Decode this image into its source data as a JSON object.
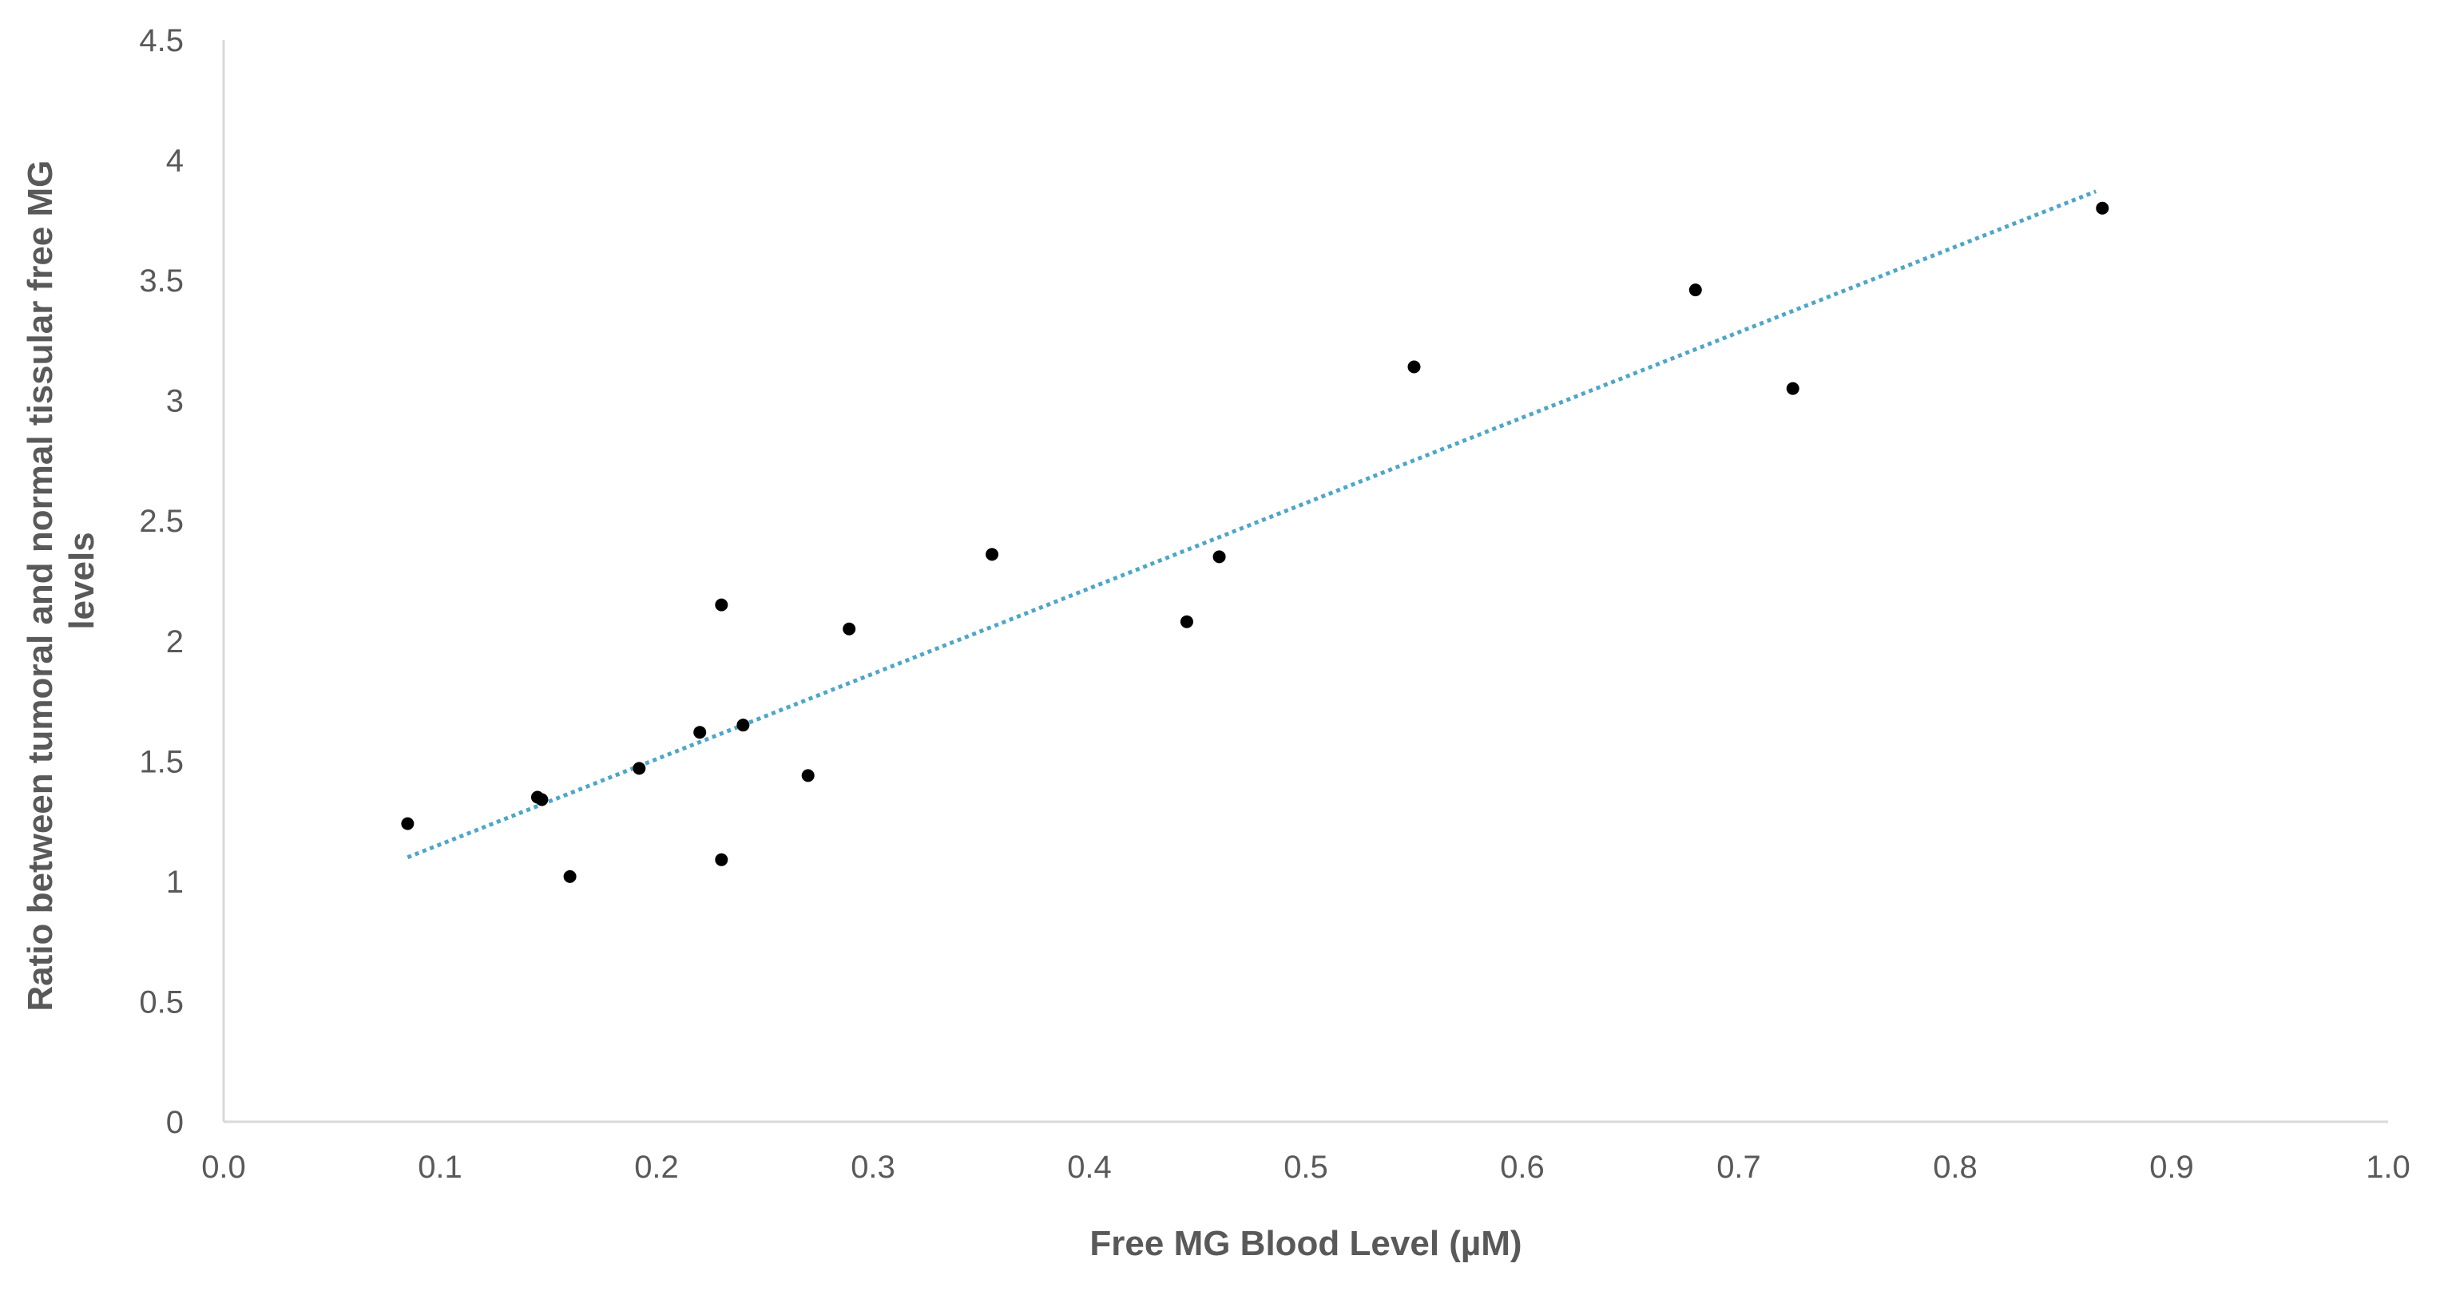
{
  "chart_data": {
    "type": "scatter",
    "title": "",
    "xlabel": "Free MG Blood Level (µM)",
    "ylabel_lines": [
      "Ratio between tumoral and normal tissular free MG",
      "levels"
    ],
    "xlim": [
      0.0,
      1.0
    ],
    "ylim": [
      0,
      4.5
    ],
    "x_ticks": [
      "0.0",
      "0.1",
      "0.2",
      "0.3",
      "0.4",
      "0.5",
      "0.6",
      "0.7",
      "0.8",
      "0.9",
      "1.0"
    ],
    "y_ticks": [
      "0",
      "0.5",
      "1",
      "1.5",
      "2",
      "2.5",
      "3",
      "3.5",
      "4",
      "4.5"
    ],
    "grid": false,
    "legend": "none",
    "colors": {
      "points": "#000000",
      "trendline": "#4ea6c9",
      "axis": "#d9d9d9",
      "text": "#595959"
    },
    "series": [
      {
        "points": [
          {
            "x": 0.085,
            "y": 1.24
          },
          {
            "x": 0.145,
            "y": 1.35
          },
          {
            "x": 0.147,
            "y": 1.34
          },
          {
            "x": 0.16,
            "y": 1.02
          },
          {
            "x": 0.192,
            "y": 1.47
          },
          {
            "x": 0.22,
            "y": 1.62
          },
          {
            "x": 0.23,
            "y": 2.15
          },
          {
            "x": 0.23,
            "y": 1.09
          },
          {
            "x": 0.24,
            "y": 1.65
          },
          {
            "x": 0.27,
            "y": 1.44
          },
          {
            "x": 0.289,
            "y": 2.05
          },
          {
            "x": 0.355,
            "y": 2.36
          },
          {
            "x": 0.445,
            "y": 2.08
          },
          {
            "x": 0.46,
            "y": 2.35
          },
          {
            "x": 0.55,
            "y": 3.14
          },
          {
            "x": 0.68,
            "y": 3.46
          },
          {
            "x": 0.725,
            "y": 3.05
          },
          {
            "x": 0.868,
            "y": 3.8
          }
        ]
      }
    ],
    "trendline": {
      "type": "linear",
      "x_start": 0.085,
      "y_start": 1.1,
      "x_end": 0.865,
      "y_end": 3.87
    }
  }
}
